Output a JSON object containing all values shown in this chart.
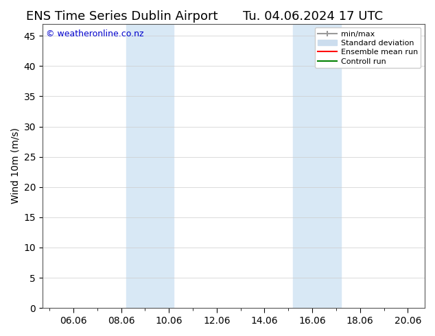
{
  "title": "ENS Time Series Dublin Airport",
  "title_right": "Tu. 04.06.2024 17 UTC",
  "ylabel": "Wind 10m (m/s)",
  "watermark": "© weatheronline.co.nz",
  "xlim_start": "2024-06-04 17:00",
  "xlim_end": "2024-06-20 17:00",
  "ylim": [
    0,
    47
  ],
  "yticks": [
    0,
    5,
    10,
    15,
    20,
    25,
    30,
    35,
    40,
    45
  ],
  "xtick_labels": [
    "06.06",
    "08.06",
    "10.06",
    "12.06",
    "14.06",
    "16.06",
    "18.06",
    "20.06"
  ],
  "shaded_bands": [
    {
      "x_start": "2024-06-08 05:00",
      "x_end": "2024-06-10 05:00"
    },
    {
      "x_start": "2024-06-15 05:00",
      "x_end": "2024-06-17 05:00"
    }
  ],
  "band_color": "#d8e8f5",
  "legend_items": [
    {
      "label": "min/max",
      "color": "#aaaaaa",
      "lw": 1.5,
      "style": "minmax"
    },
    {
      "label": "Standard deviation",
      "color": "#ccddee",
      "lw": 8,
      "style": "band"
    },
    {
      "label": "Ensemble mean run",
      "color": "#ff0000",
      "lw": 1.5,
      "style": "line"
    },
    {
      "label": "Controll run",
      "color": "#008000",
      "lw": 1.5,
      "style": "line"
    }
  ],
  "bg_color": "#ffffff",
  "plot_bg_color": "#ffffff",
  "grid_color": "#cccccc",
  "title_fontsize": 13,
  "axis_fontsize": 10,
  "watermark_color": "#0000cc",
  "watermark_fontsize": 9
}
